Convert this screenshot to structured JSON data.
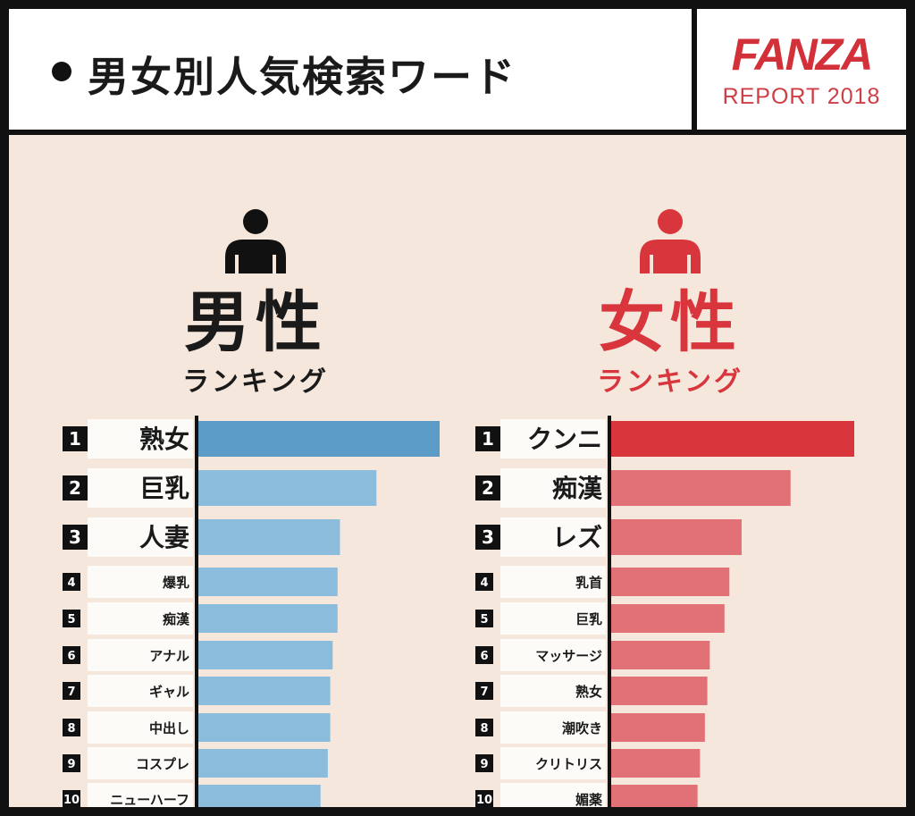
{
  "header": {
    "bullet": "●",
    "title": "男女別人気検索ワード",
    "brand_logo": "FANZA",
    "brand_subtitle": "REPORT 2018"
  },
  "colors": {
    "male_text": "#1a1a1a",
    "female_text": "#d8353d",
    "male_bar_top": "#5a9cc6",
    "male_bar": "#8cbcdb",
    "female_bar_top": "#d8353d",
    "female_bar": "#e27077",
    "background": "#f6e7dc",
    "brand": "#d3313a"
  },
  "male": {
    "icon": "male-person-icon",
    "title": "男性",
    "subtitle": "ランキング"
  },
  "female": {
    "icon": "female-person-icon",
    "title": "女性",
    "subtitle": "ランキング"
  },
  "chart_data": [
    {
      "type": "bar",
      "orientation": "horizontal",
      "ranks": [
        "1",
        "2",
        "3",
        "4",
        "5",
        "6",
        "7",
        "8",
        "9",
        "10"
      ],
      "categories": [
        "熟女",
        "巨乳",
        "人妻",
        "爆乳",
        "痴漢",
        "アナル",
        "ギャル",
        "中出し",
        "コスプレ",
        "ニューハーフ"
      ],
      "values": [
        100,
        74,
        59,
        58,
        58,
        56,
        55,
        55,
        54,
        51
      ],
      "xlim": [
        0,
        100
      ],
      "grid": false
    },
    {
      "type": "bar",
      "orientation": "horizontal",
      "ranks": [
        "1",
        "2",
        "3",
        "4",
        "5",
        "6",
        "7",
        "8",
        "9",
        "10"
      ],
      "categories": [
        "クンニ",
        "痴漢",
        "レズ",
        "乳首",
        "巨乳",
        "マッサージ",
        "熟女",
        "潮吹き",
        "クリトリス",
        "媚薬"
      ],
      "values": [
        100,
        74,
        54,
        49,
        47,
        41,
        40,
        39,
        37,
        36
      ],
      "xlim": [
        0,
        100
      ],
      "grid": false
    }
  ]
}
